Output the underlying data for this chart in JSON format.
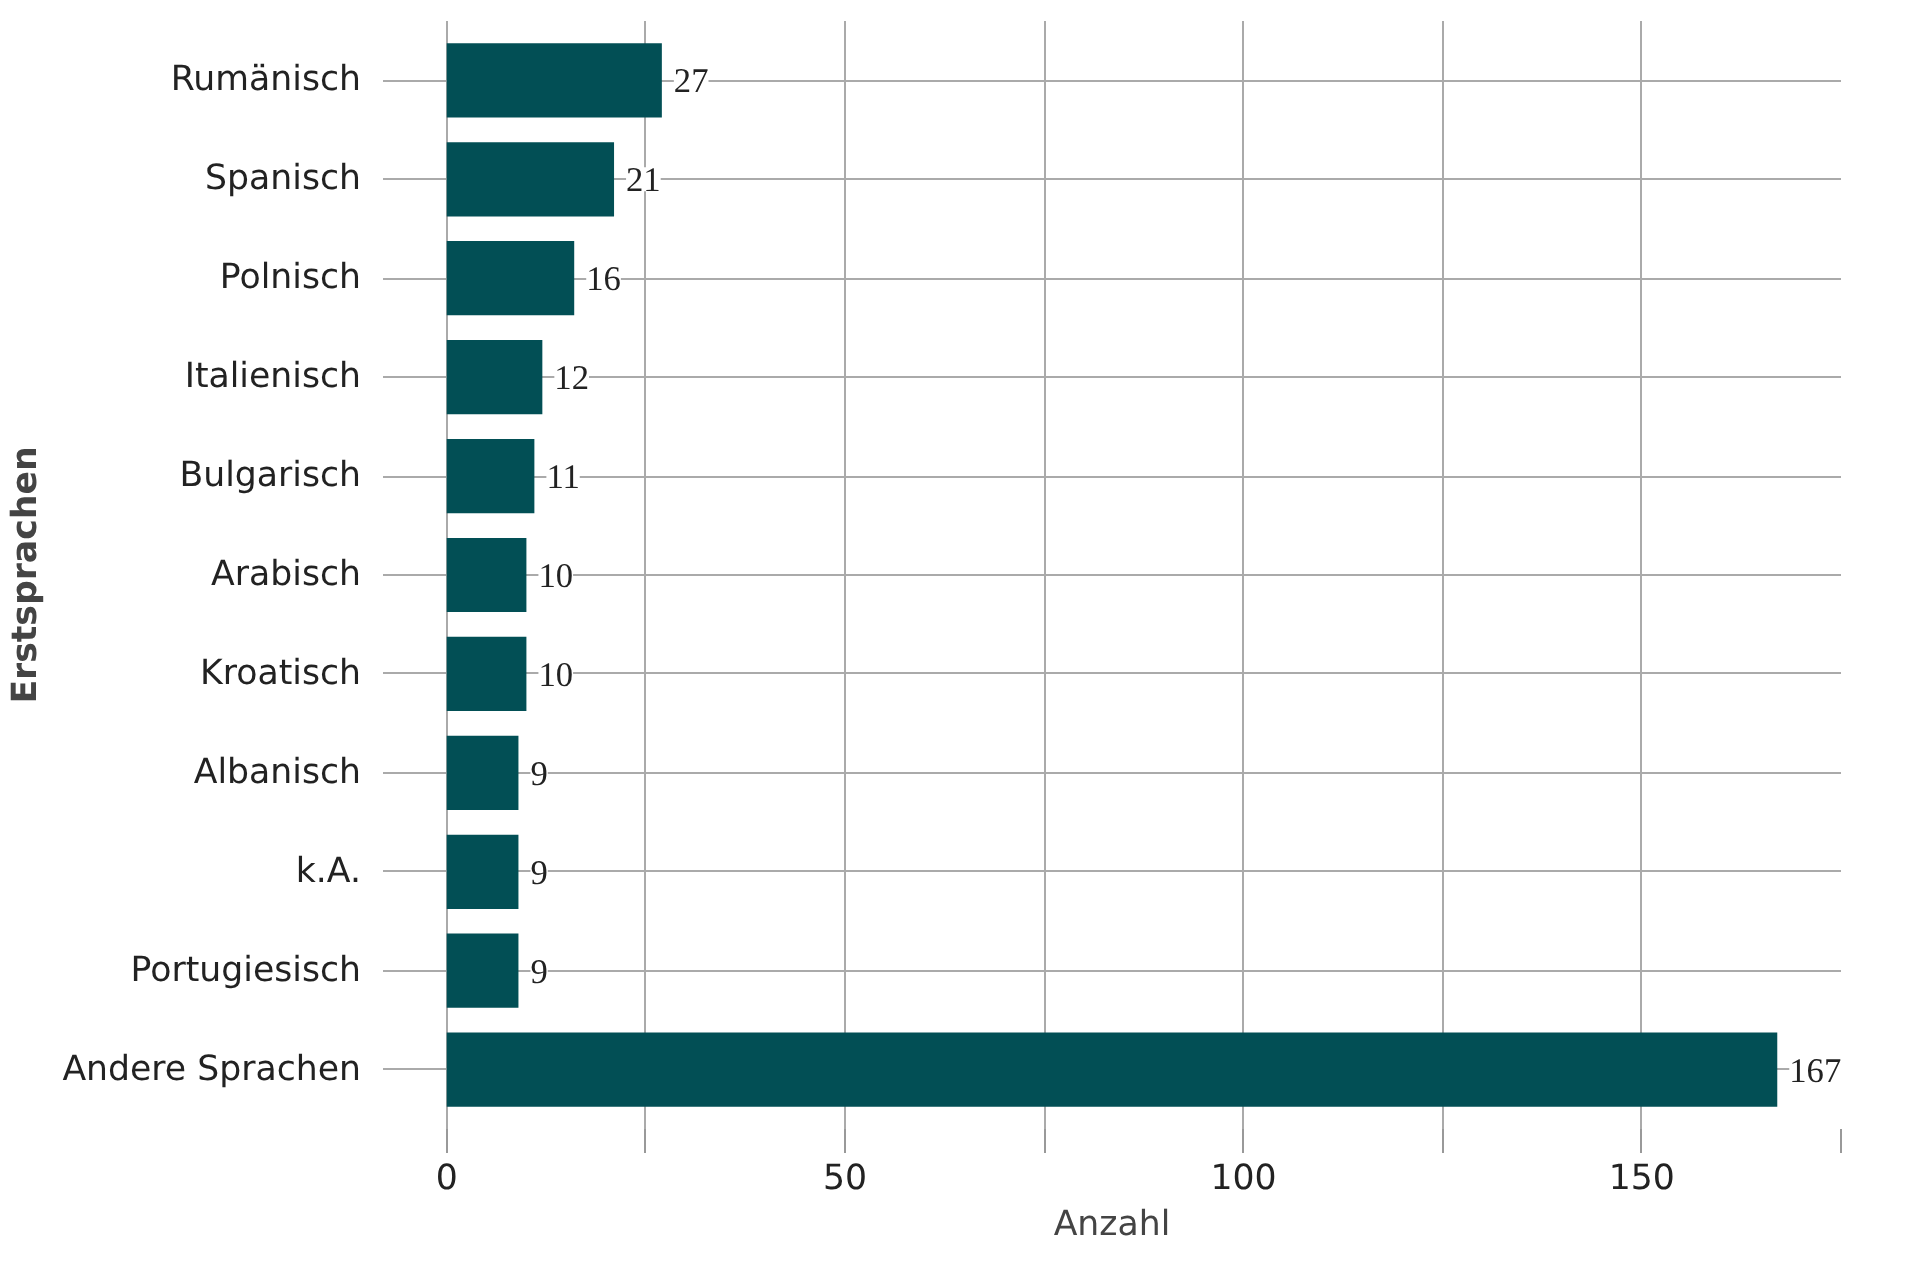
{
  "chart_data": {
    "type": "bar",
    "orientation": "horizontal",
    "xlabel": "Anzahl",
    "ylabel": "Erstsprachen",
    "categories": [
      "Rumänisch",
      "Spanisch",
      "Polnisch",
      "Italienisch",
      "Bulgarisch",
      "Arabisch",
      "Kroatisch",
      "Albanisch",
      "k.A.",
      "Portugiesisch",
      "Andere Sprachen"
    ],
    "values": [
      27,
      21,
      16,
      12,
      11,
      10,
      10,
      9,
      9,
      9,
      167
    ],
    "color": "#024f55",
    "xlim": [
      -8,
      175
    ],
    "xticks": [
      0,
      {
        "value": 25,
        "label": null
      },
      50,
      {
        "value": 75,
        "label": null
      },
      100,
      {
        "value": 125,
        "label": null
      },
      150,
      {
        "value": 175,
        "label": null
      }
    ],
    "grid": true,
    "data_labels": true
  }
}
